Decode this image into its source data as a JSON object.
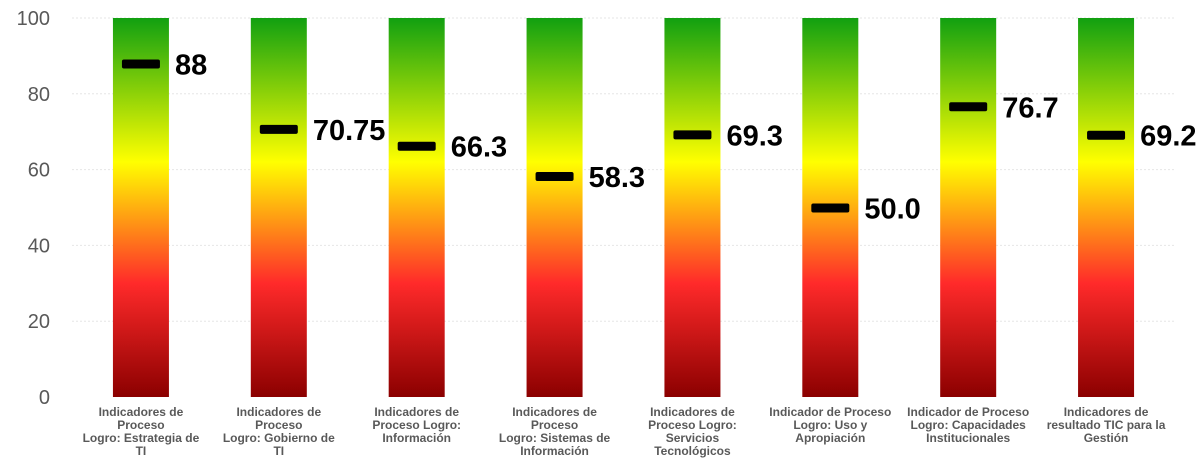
{
  "chart_data": {
    "type": "bar",
    "title": "",
    "xlabel": "",
    "ylabel": "",
    "ylim": [
      0,
      100
    ],
    "yticks": [
      "0",
      "20",
      "40",
      "60",
      "80",
      "100"
    ],
    "grid": true,
    "legend": "none",
    "gradient_colors": {
      "bottom": "#8b0000",
      "low": "#ff2a2a",
      "mid": "#ffff00",
      "top": "#11a011"
    },
    "marker_color": "#000000",
    "categories": [
      [
        "Indicadores de",
        "Proceso",
        "Logro: Estrategia de",
        "TI"
      ],
      [
        "Indicadores de",
        "Proceso",
        "Logro: Gobierno de",
        "TI"
      ],
      [
        "Indicadores de",
        "Proceso Logro:",
        "Información"
      ],
      [
        "Indicadores de",
        "Proceso",
        "Logro: Sistemas de",
        "Información"
      ],
      [
        "Indicadores de",
        "Proceso  Logro:",
        "Servicios",
        "Tecnológicos"
      ],
      [
        "Indicador de Proceso",
        "Logro: Uso y",
        "Apropiación"
      ],
      [
        "Indicador de Proceso",
        "Logro: Capacidades",
        "Institucionales"
      ],
      [
        "Indicadores de",
        "resultado TIC para la",
        "Gestión"
      ]
    ],
    "values": [
      88,
      70.75,
      66.3,
      58.3,
      69.3,
      50.0,
      76.7,
      69.2
    ],
    "value_labels": [
      "88",
      "70.75",
      "66.3",
      "58.3",
      "69.3",
      "50.0",
      "76.7",
      "69.2"
    ]
  }
}
